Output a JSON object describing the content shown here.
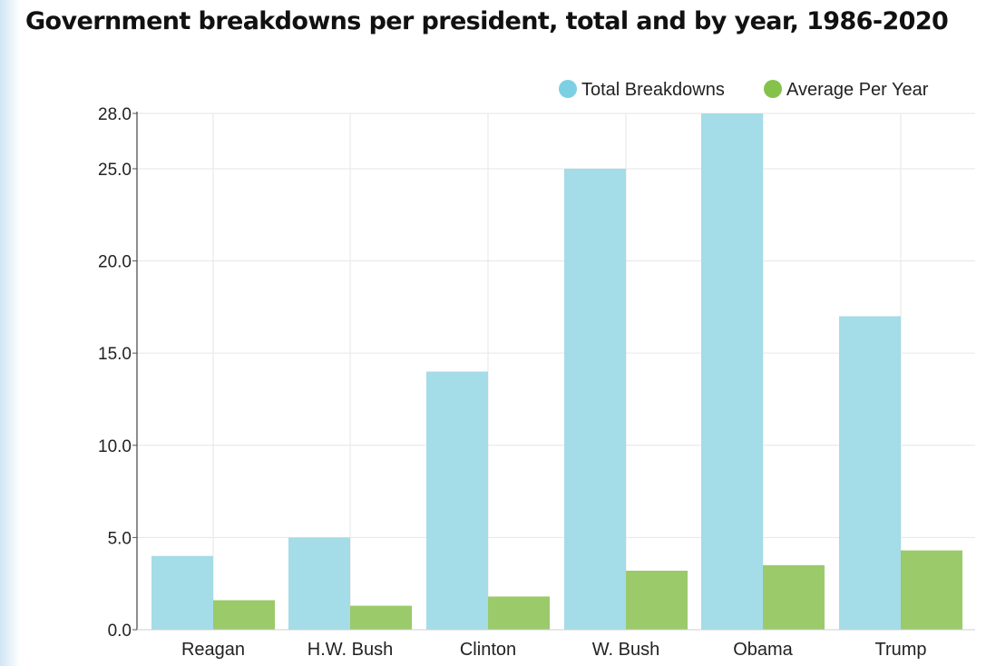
{
  "chart_data": {
    "type": "bar",
    "title": "Government breakdowns per president, total and by year, 1986-2020",
    "categories": [
      "Reagan",
      "H.W. Bush",
      "Clinton",
      "W. Bush",
      "Obama",
      "Trump"
    ],
    "series": [
      {
        "name": "Total Breakdowns",
        "color": "#a4dce8",
        "values": [
          4,
          5,
          14,
          25,
          28,
          17
        ]
      },
      {
        "name": "Average Per Year",
        "color": "#9bca6a",
        "values": [
          1.6,
          1.3,
          1.8,
          3.2,
          3.5,
          4.3
        ]
      }
    ],
    "ylim": [
      0,
      28
    ],
    "yticks": [
      "0.0",
      "5.0",
      "10.0",
      "15.0",
      "20.0",
      "25.0",
      "28.0"
    ],
    "xlabel": "",
    "ylabel": "",
    "grid": true,
    "legend_position": "top-right"
  }
}
